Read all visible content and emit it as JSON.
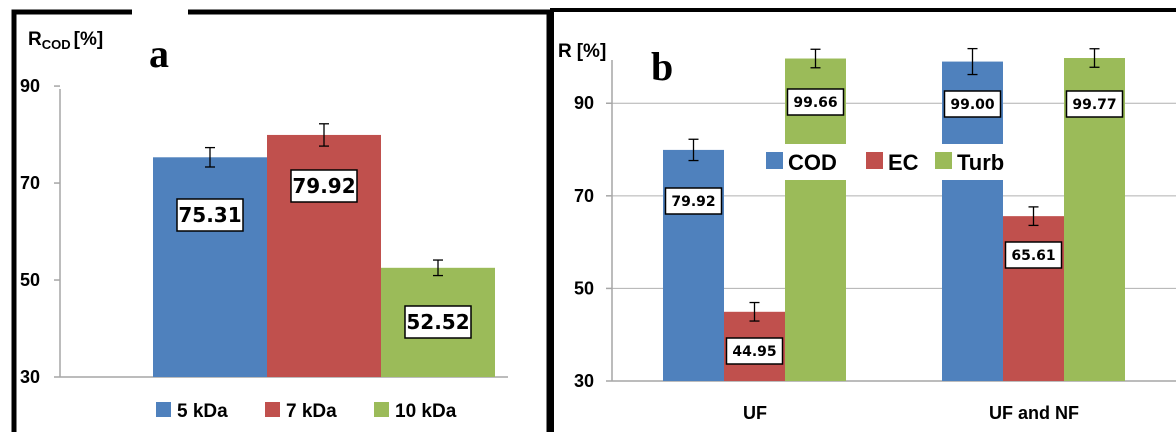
{
  "colors": {
    "blue": "#4f81bd",
    "red": "#c0504d",
    "green": "#9bbb59",
    "grid": "#b0b0b0",
    "frame": "#000000"
  },
  "chart_data": [
    {
      "panel": "a",
      "type": "bar",
      "ylabel_main": "R",
      "ylabel_sub": "COD",
      "ylabel_unit": "[%]",
      "yticks": [
        30,
        50,
        70,
        90
      ],
      "ylim": [
        30,
        99.5
      ],
      "grid": false,
      "legend_position": "bottom",
      "series": [
        {
          "name": "5 kDa",
          "value": 75.31,
          "label": "75.31",
          "error": 2,
          "color": "blue"
        },
        {
          "name": "7 kDa",
          "value": 79.92,
          "label": "79.92",
          "error": 2.3,
          "color": "red"
        },
        {
          "name": "10 kDa",
          "value": 52.52,
          "label": "52.52",
          "error": 1.6,
          "color": "green"
        }
      ]
    },
    {
      "panel": "b",
      "type": "bar",
      "ylabel_main": "R",
      "ylabel_unit": "[%]",
      "yticks": [
        30,
        50,
        70,
        90
      ],
      "ylim": [
        30,
        101.5
      ],
      "grid": true,
      "legend_position": "top-center (inside)",
      "categories": [
        "UF",
        "UF and NF"
      ],
      "series": [
        {
          "name": "COD",
          "color": "blue",
          "values": [
            79.92,
            99.0
          ],
          "labels": [
            "79.92",
            "99.00"
          ],
          "errors": [
            2.3,
            2.8
          ]
        },
        {
          "name": "EC",
          "color": "red",
          "values": [
            44.95,
            65.61
          ],
          "labels": [
            "44.95",
            "65.61"
          ],
          "errors": [
            2.0,
            2.0
          ]
        },
        {
          "name": "Turb",
          "color": "green",
          "values": [
            99.66,
            99.77
          ],
          "labels": [
            "99.66",
            "99.77"
          ],
          "errors": [
            2.0,
            2.0
          ]
        }
      ]
    }
  ]
}
